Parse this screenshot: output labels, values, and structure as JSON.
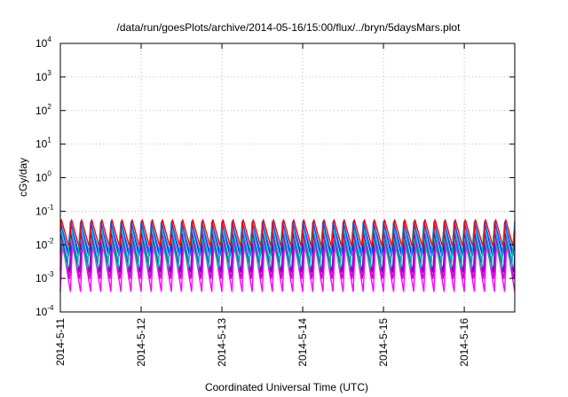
{
  "chart_data": {
    "type": "line",
    "title": "/data/run/goesPlots/archive/2014-05-16/15:00/flux/../bryn/5daysMars.plot",
    "xlabel": "Coordinated Universal Time (UTC)",
    "ylabel": "cGy/day",
    "yscale": "log",
    "ylim": [
      0.0001,
      10000
    ],
    "xlim": [
      "2014-05-11T00:00",
      "2014-05-16T15:00"
    ],
    "y_ticks": [
      {
        "value": 0.0001,
        "mantissa": "10",
        "exponent": "-4"
      },
      {
        "value": 0.001,
        "mantissa": "10",
        "exponent": "-3"
      },
      {
        "value": 0.01,
        "mantissa": "10",
        "exponent": "-2"
      },
      {
        "value": 0.1,
        "mantissa": "10",
        "exponent": "-1"
      },
      {
        "value": 1,
        "mantissa": "10",
        "exponent": "0"
      },
      {
        "value": 10,
        "mantissa": "10",
        "exponent": "1"
      },
      {
        "value": 100,
        "mantissa": "10",
        "exponent": "2"
      },
      {
        "value": 1000,
        "mantissa": "10",
        "exponent": "3"
      },
      {
        "value": 10000,
        "mantissa": "10",
        "exponent": "4"
      }
    ],
    "x_ticks": [
      "2014-5-11",
      "2014-5-12",
      "2014-5-13",
      "2014-5-14",
      "2014-5-15",
      "2014-5-16"
    ],
    "grid": true,
    "legend": "none",
    "cycle_hours": 3,
    "series": [
      {
        "color": "#ff00ff",
        "peak": 0.012,
        "trough": 0.0004,
        "phase": 0.0
      },
      {
        "color": "#cc00cc",
        "peak": 0.018,
        "trough": 0.0008,
        "phase": 0.05
      },
      {
        "color": "#8800cc",
        "peak": 0.022,
        "trough": 0.0015,
        "phase": 0.1
      },
      {
        "color": "#0000ff",
        "peak": 0.045,
        "trough": 0.004,
        "phase": 0.15
      },
      {
        "color": "#0066ff",
        "peak": 0.05,
        "trough": 0.006,
        "phase": 0.2
      },
      {
        "color": "#00b0d0",
        "peak": 0.04,
        "trough": 0.003,
        "phase": 0.25
      },
      {
        "color": "#00c0a0",
        "peak": 0.02,
        "trough": 0.002,
        "phase": 0.3
      },
      {
        "color": "#ff0000",
        "peak": 0.06,
        "trough": 0.008,
        "phase": 0.12
      }
    ]
  }
}
